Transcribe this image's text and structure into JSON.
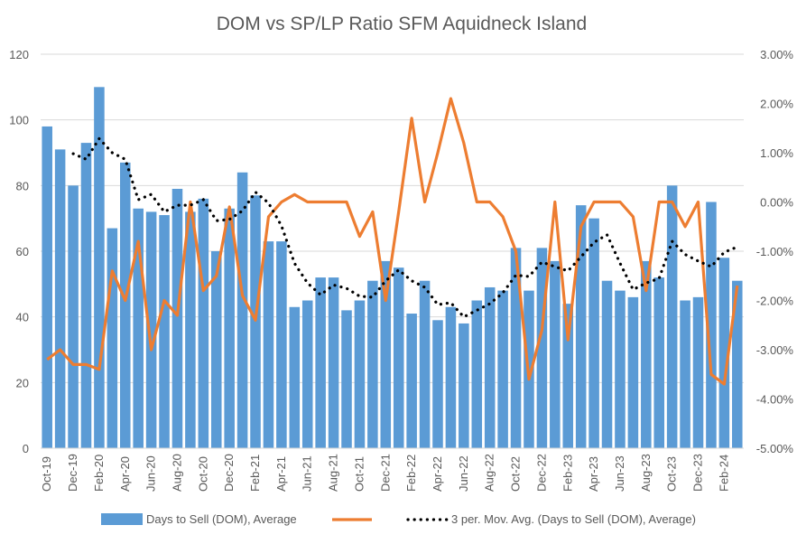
{
  "chart_data": {
    "type": "bar",
    "title": "DOM vs SP/LP Ratio SFM Aquidneck Island",
    "categories": [
      "Oct-19",
      "Nov-19",
      "Dec-19",
      "Jan-20",
      "Feb-20",
      "Mar-20",
      "Apr-20",
      "May-20",
      "Jun-20",
      "Jul-20",
      "Aug-20",
      "Sep-20",
      "Oct-20",
      "Nov-20",
      "Dec-20",
      "Jan-21",
      "Feb-21",
      "Mar-21",
      "Apr-21",
      "May-21",
      "Jun-21",
      "Jul-21",
      "Aug-21",
      "Sep-21",
      "Oct-21",
      "Nov-21",
      "Dec-21",
      "Jan-22",
      "Feb-22",
      "Mar-22",
      "Apr-22",
      "May-22",
      "Jun-22",
      "Jul-22",
      "Aug-22",
      "Sep-22",
      "Oct-22",
      "Nov-22",
      "Dec-22",
      "Jan-23",
      "Feb-23",
      "Mar-23",
      "Apr-23",
      "May-23",
      "Jun-23",
      "Jul-23",
      "Aug-23",
      "Sep-23",
      "Oct-23",
      "Nov-23",
      "Dec-23",
      "Jan-24",
      "Feb-24",
      "Mar-24"
    ],
    "x_tick_labels": [
      "Oct-19",
      "Dec-19",
      "Feb-20",
      "Apr-20",
      "Jun-20",
      "Aug-20",
      "Oct-20",
      "Dec-20",
      "Feb-21",
      "Apr-21",
      "Jun-21",
      "Aug-21",
      "Oct-21",
      "Dec-21",
      "Feb-22",
      "Apr-22",
      "Jun-22",
      "Aug-22",
      "Oct-22",
      "Dec-22",
      "Feb-23",
      "Apr-23",
      "Jun-23",
      "Aug-23",
      "Oct-23",
      "Dec-23",
      "Feb-24"
    ],
    "series": [
      {
        "name": "Days to Sell (DOM), Average",
        "type": "bar",
        "axis": "left",
        "color": "#5b9bd5",
        "values": [
          98,
          91,
          80,
          93,
          110,
          67,
          87,
          73,
          72,
          71,
          79,
          72,
          76,
          60,
          73,
          84,
          77,
          63,
          63,
          43,
          45,
          52,
          52,
          42,
          45,
          51,
          57,
          55,
          41,
          51,
          39,
          43,
          38,
          45,
          49,
          48,
          61,
          48,
          61,
          57,
          44,
          74,
          70,
          51,
          48,
          46,
          57,
          52,
          80,
          45,
          46,
          75,
          58,
          51
        ]
      },
      {
        "name": "",
        "type": "line",
        "axis": "right",
        "color": "#ed7d31",
        "values": [
          -3.2,
          -3.0,
          -3.3,
          -3.3,
          -3.4,
          -1.4,
          -2.0,
          -0.8,
          -3.0,
          -2.0,
          -2.3,
          0.0,
          -1.8,
          -1.5,
          -0.1,
          -1.9,
          -2.4,
          -0.3,
          0.0,
          0.15,
          0.0,
          0.0,
          0.0,
          0.0,
          -0.7,
          -0.2,
          -2.0,
          -0.2,
          1.7,
          0.0,
          1.0,
          2.1,
          1.2,
          0.0,
          0.0,
          -0.3,
          -1.0,
          -3.6,
          -2.6,
          0.0,
          -2.8,
          -0.5,
          0.0,
          0.0,
          0.0,
          -0.3,
          -1.8,
          0.0,
          0.0,
          -0.5,
          0.0,
          -3.5,
          -3.7,
          -1.7
        ]
      },
      {
        "name": "3 per. Mov. Avg. (Days to Sell (DOM), Average)",
        "type": "line",
        "style": "dotted",
        "axis": "left",
        "color": "#000000",
        "values": [
          null,
          null,
          89.7,
          88,
          94.3,
          90,
          88,
          75.7,
          77.3,
          72,
          74,
          74,
          75.7,
          69.3,
          69.7,
          72.3,
          78,
          74.7,
          67.7,
          56.3,
          50.3,
          46.7,
          49.7,
          48.7,
          46.3,
          46,
          51,
          54.3,
          51,
          49,
          43.7,
          44.3,
          40,
          42,
          44,
          47.3,
          52.7,
          52.3,
          56.7,
          55.3,
          54,
          58.3,
          62.7,
          65,
          56.3,
          48.3,
          50.3,
          51.7,
          63,
          59,
          57,
          55.3,
          59.7,
          61.3
        ]
      }
    ],
    "y_left": {
      "min": 0,
      "max": 120,
      "ticks": [
        "0",
        "20",
        "40",
        "60",
        "80",
        "100",
        "120"
      ]
    },
    "y_right": {
      "min": -5,
      "max": 3,
      "unit": "%",
      "ticks": [
        "-5.00%",
        "-4.00%",
        "-3.00%",
        "-2.00%",
        "-1.00%",
        "0.00%",
        "1.00%",
        "2.00%",
        "3.00%"
      ]
    },
    "grid": true,
    "legend_position": "bottom",
    "legend": [
      {
        "label": "Days to Sell (DOM), Average",
        "kind": "bar",
        "color": "#5b9bd5"
      },
      {
        "label": "",
        "kind": "line",
        "color": "#ed7d31"
      },
      {
        "label": "3 per. Mov. Avg. (Days to Sell (DOM), Average)",
        "kind": "dotted",
        "color": "#000000"
      }
    ]
  }
}
